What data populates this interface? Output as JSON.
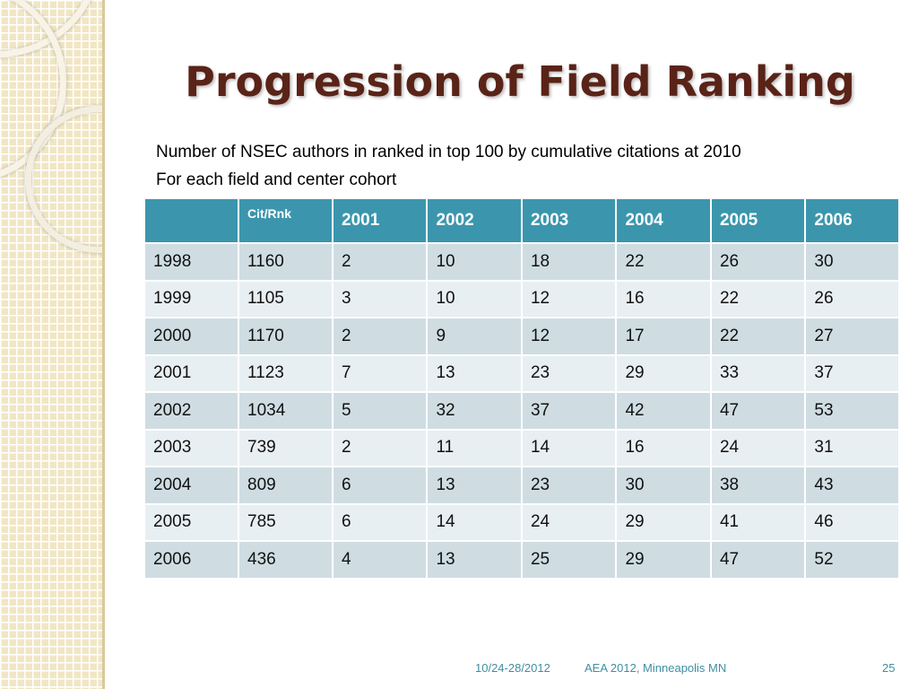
{
  "slide": {
    "title": "Progression of Field Ranking",
    "subtitle_lines": [
      "Number of NSEC authors in ranked in top 100 by cumulative citations at 2010",
      "For each field and center cohort"
    ]
  },
  "table": {
    "headers": [
      "",
      "Cit/Rnk",
      "2001",
      "2002",
      "2003",
      "2004",
      "2005",
      "2006"
    ],
    "rows": [
      [
        "1998",
        "1160",
        "2",
        "10",
        "18",
        "22",
        "26",
        "30"
      ],
      [
        "1999",
        "1105",
        "3",
        "10",
        "12",
        "16",
        "22",
        "26"
      ],
      [
        "2000",
        "1170",
        "2",
        "9",
        "12",
        "17",
        "22",
        "27"
      ],
      [
        "2001",
        "1123",
        "7",
        "13",
        "23",
        "29",
        "33",
        "37"
      ],
      [
        "2002",
        "1034",
        "5",
        "32",
        "37",
        "42",
        "47",
        "53"
      ],
      [
        "2003",
        "739",
        "2",
        "11",
        "14",
        "16",
        "24",
        "31"
      ],
      [
        "2004",
        "809",
        "6",
        "13",
        "23",
        "30",
        "38",
        "43"
      ],
      [
        "2005",
        "785",
        "6",
        "14",
        "24",
        "29",
        "41",
        "46"
      ],
      [
        "2006",
        "436",
        "4",
        "13",
        "25",
        "29",
        "47",
        "52"
      ]
    ]
  },
  "footer": {
    "date": "10/24-28/2012",
    "venue": "AEA 2012, Minneapolis MN",
    "page": "25"
  },
  "colors": {
    "title": "#5a2317",
    "header_bg": "#3b96ad",
    "row_dark": "#cfdde3",
    "row_light": "#e8eff2",
    "footer": "#3f8ea4",
    "strip": "#f1e6c4"
  }
}
